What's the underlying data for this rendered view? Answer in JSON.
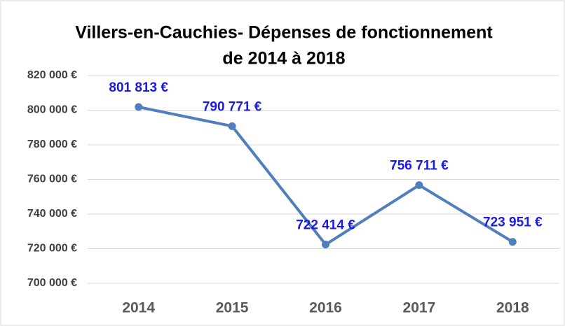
{
  "chart_data": {
    "type": "line",
    "title": [
      "Villers-en-Cauchies- Dépenses de fonctionnement",
      "de 2014 à 2018"
    ],
    "categories": [
      "2014",
      "2015",
      "2016",
      "2017",
      "2018"
    ],
    "series": [
      {
        "name": "Dépenses de fonctionnement",
        "color": "#4f7fbc",
        "values": [
          801813,
          790771,
          722414,
          756711,
          723951
        ],
        "value_labels": [
          "801 813 €",
          "790 771 €",
          "722 414 €",
          "756 711 €",
          "723 951 €"
        ]
      }
    ],
    "ylim": [
      700000,
      820000
    ],
    "yticks": [
      {
        "value": 700000,
        "label": "700 000 €"
      },
      {
        "value": 720000,
        "label": "720 000 €"
      },
      {
        "value": 740000,
        "label": "740 000 €"
      },
      {
        "value": 760000,
        "label": "760 000 €"
      },
      {
        "value": 780000,
        "label": "780 000 €"
      },
      {
        "value": 800000,
        "label": "800 000 €"
      },
      {
        "value": 820000,
        "label": "820 000 €"
      }
    ],
    "grid": true
  }
}
